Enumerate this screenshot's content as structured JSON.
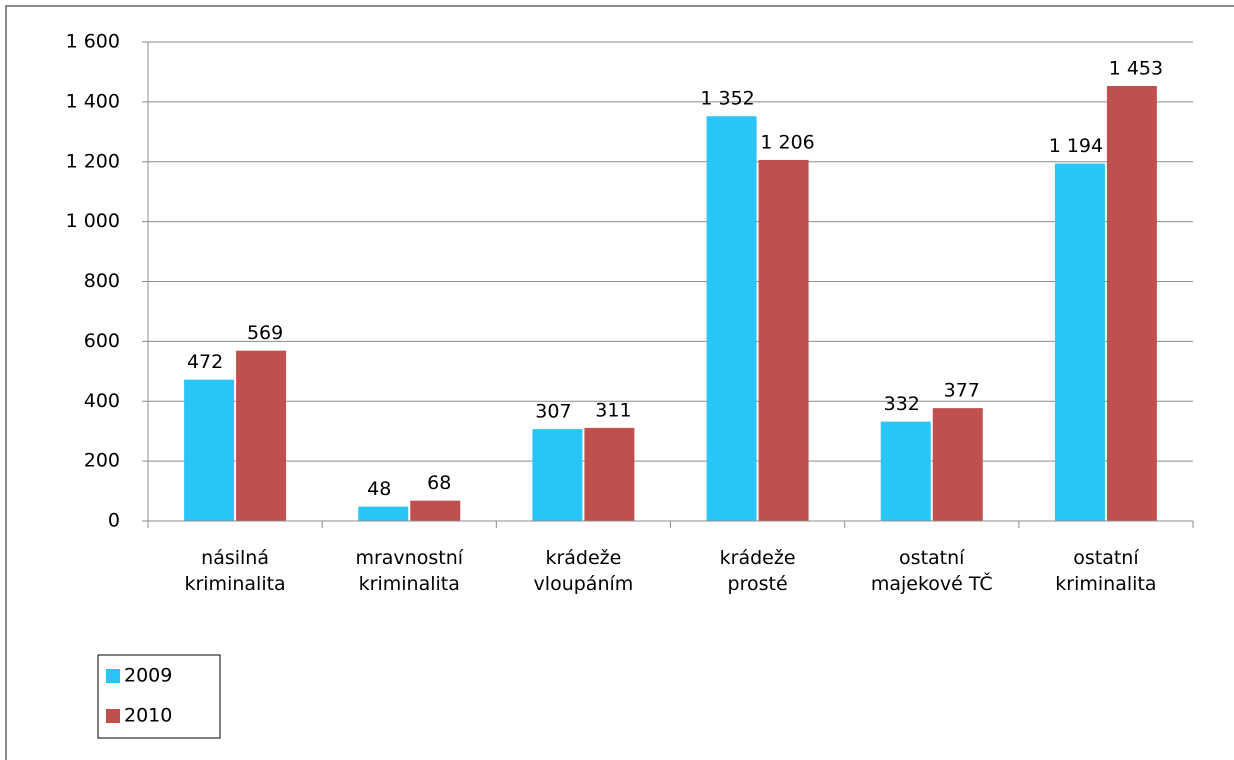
{
  "chart_data": {
    "type": "bar",
    "categories": [
      "násilná\nkriminalita",
      "mravnostní\nkriminalita",
      "krádeže\nvloupáním",
      "krádeže\nprosté",
      "ostatní\nmajekové TČ",
      "ostatní\nkriminalita"
    ],
    "series": [
      {
        "name": "2009",
        "color": "#29c5f6",
        "values": [
          472,
          48,
          307,
          1352,
          332,
          1194
        ],
        "value_labels": [
          "472",
          "48",
          "307",
          "1 352",
          "332",
          "1 194"
        ]
      },
      {
        "name": "2010",
        "color": "#c0504d",
        "values": [
          569,
          68,
          311,
          1206,
          377,
          1453
        ],
        "value_labels": [
          "569",
          "68",
          "311",
          "1 206",
          "377",
          "1 453"
        ]
      }
    ],
    "ylim": [
      0,
      1600
    ],
    "yticks": [
      0,
      200,
      400,
      600,
      800,
      {
        "value": 1000,
        "label": "1 000"
      },
      {
        "value": 1200,
        "label": "1 200"
      },
      {
        "value": 1400,
        "label": "1 400"
      },
      {
        "value": 1600,
        "label": "1 600"
      }
    ],
    "grid": true,
    "legend": "bottom-left"
  }
}
